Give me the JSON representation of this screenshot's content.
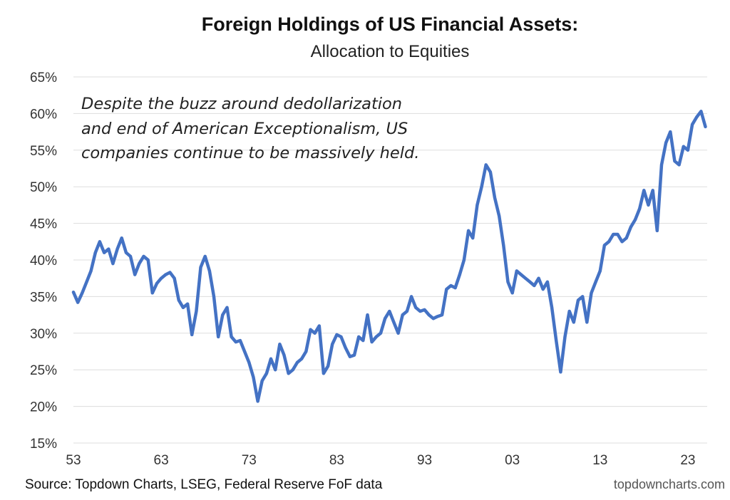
{
  "chart_data": {
    "type": "line",
    "title": "Foreign Holdings of US Financial Assets:",
    "subtitle": "Allocation to Equities",
    "annotation": [
      "Despite the buzz around dedollarization",
      "and end of American Exceptionalism, US",
      "companies continue to be massively held."
    ],
    "source": "Source: Topdown Charts, LSEG, Federal Reserve FoF data",
    "brand": "topdowncharts.com",
    "ylim": [
      15,
      65
    ],
    "y_ticks": [
      15,
      20,
      25,
      30,
      35,
      40,
      45,
      50,
      55,
      60,
      65
    ],
    "y_tick_labels": [
      "15%",
      "20%",
      "25%",
      "30%",
      "35%",
      "40%",
      "45%",
      "50%",
      "55%",
      "60%",
      "65%"
    ],
    "xlim": [
      1953,
      2025.2
    ],
    "x_ticks": [
      1953,
      1963,
      1973,
      1983,
      1993,
      2003,
      2013,
      2023
    ],
    "x_tick_labels": [
      "53",
      "63",
      "73",
      "83",
      "93",
      "03",
      "13",
      "23"
    ],
    "grid": true,
    "line_color": "#4472C4",
    "series": [
      {
        "x": [
          1953.0,
          1953.5,
          1954.0,
          1954.5,
          1955.0,
          1955.5,
          1956.0,
          1956.5,
          1957.0,
          1957.5,
          1958.0,
          1958.5,
          1959.0,
          1959.5,
          1960.0,
          1960.5,
          1961.0,
          1961.5,
          1962.0,
          1962.5,
          1963.0,
          1963.5,
          1964.0,
          1964.5,
          1965.0,
          1965.5,
          1966.0,
          1966.5,
          1967.0,
          1967.5,
          1968.0,
          1968.5,
          1969.0,
          1969.5,
          1970.0,
          1970.5,
          1971.0,
          1971.5,
          1972.0,
          1972.5,
          1973.0,
          1973.5,
          1974.0,
          1974.5,
          1975.0,
          1975.5,
          1976.0,
          1976.5,
          1977.0,
          1977.5,
          1978.0,
          1978.5,
          1979.0,
          1979.5,
          1980.0,
          1980.5,
          1981.0,
          1981.5,
          1982.0,
          1982.5,
          1983.0,
          1983.5,
          1984.0,
          1984.5,
          1985.0,
          1985.5,
          1986.0,
          1986.5,
          1987.0,
          1987.5,
          1988.0,
          1988.5,
          1989.0,
          1989.5,
          1990.0,
          1990.5,
          1991.0,
          1991.5,
          1992.0,
          1992.5,
          1993.0,
          1993.5,
          1994.0,
          1994.5,
          1995.0,
          1995.5,
          1996.0,
          1996.5,
          1997.0,
          1997.5,
          1998.0,
          1998.5,
          1999.0,
          1999.5,
          2000.0,
          2000.5,
          2001.0,
          2001.5,
          2002.0,
          2002.5,
          2003.0,
          2003.5,
          2004.0,
          2004.5,
          2005.0,
          2005.5,
          2006.0,
          2006.5,
          2007.0,
          2007.5,
          2008.0,
          2008.5,
          2009.0,
          2009.5,
          2010.0,
          2010.5,
          2011.0,
          2011.5,
          2012.0,
          2012.5,
          2013.0,
          2013.5,
          2014.0,
          2014.5,
          2015.0,
          2015.5,
          2016.0,
          2016.5,
          2017.0,
          2017.5,
          2018.0,
          2018.5,
          2019.0,
          2019.5,
          2020.0,
          2020.5,
          2021.0,
          2021.5,
          2022.0,
          2022.5,
          2023.0,
          2023.5,
          2024.0,
          2024.5,
          2025.0
        ],
        "values": [
          35.6,
          34.2,
          35.5,
          37.0,
          38.5,
          41.0,
          42.5,
          41.0,
          41.5,
          39.5,
          41.5,
          43.0,
          41.0,
          40.5,
          38.0,
          39.5,
          40.5,
          40.0,
          35.5,
          36.8,
          37.5,
          38.0,
          38.3,
          37.5,
          34.5,
          33.5,
          34.0,
          29.8,
          33.0,
          39.0,
          40.5,
          38.5,
          35.0,
          29.5,
          32.5,
          33.5,
          29.5,
          28.8,
          29.0,
          27.5,
          26.0,
          24.0,
          20.7,
          23.5,
          24.5,
          26.5,
          25.0,
          28.5,
          27.0,
          24.5,
          25.0,
          26.0,
          26.5,
          27.5,
          30.5,
          30.0,
          31.0,
          24.5,
          25.5,
          28.5,
          29.8,
          29.5,
          28.0,
          26.8,
          27.0,
          29.5,
          29.0,
          32.5,
          28.8,
          29.5,
          30.0,
          32.0,
          33.0,
          31.5,
          30.0,
          32.5,
          33.0,
          35.0,
          33.5,
          33.0,
          33.2,
          32.5,
          32.0,
          32.3,
          32.5,
          36.0,
          36.5,
          36.2,
          38.0,
          40.0,
          44.0,
          43.0,
          47.5,
          50.0,
          53.0,
          52.0,
          48.5,
          46.0,
          42.0,
          37.0,
          35.5,
          38.5,
          38.0,
          37.5,
          37.0,
          36.5,
          37.5,
          36.0,
          37.0,
          33.5,
          29.0,
          24.7,
          29.5,
          33.0,
          31.5,
          34.5,
          35.0,
          31.5,
          35.5,
          37.0,
          38.5,
          42.0,
          42.5,
          43.5,
          43.5,
          42.5,
          43.0,
          44.5,
          45.5,
          47.0,
          49.5,
          47.5,
          49.5,
          44.0,
          53.0,
          56.0,
          57.5,
          53.5,
          53.0,
          55.5,
          55.0,
          58.5,
          59.5,
          60.3,
          58.2
        ]
      }
    ]
  }
}
